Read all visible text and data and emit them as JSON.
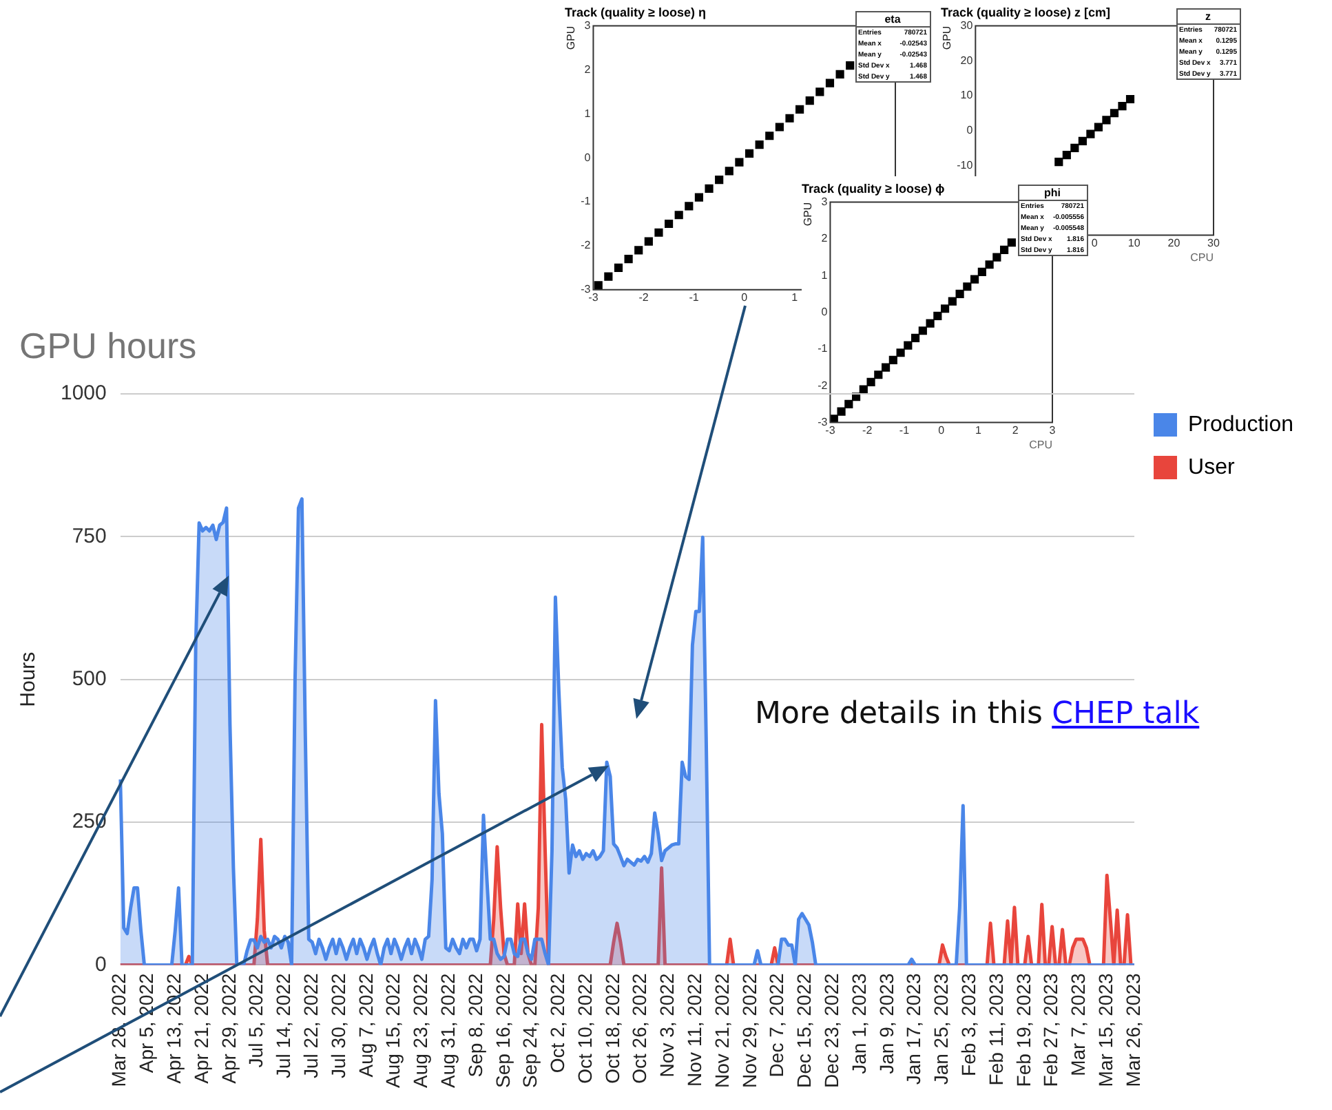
{
  "chart_data": [
    {
      "type": "scatter",
      "title": "Track (quality ≥ loose) η",
      "ylabel": "GPU",
      "marker": "square",
      "grid": false,
      "legend": false,
      "x": [
        -2.9,
        -2.7,
        -2.5,
        -2.3,
        -2.1,
        -1.9,
        -1.7,
        -1.5,
        -1.3,
        -1.1,
        -0.9,
        -0.7,
        -0.5,
        -0.3,
        -0.1,
        0.1,
        0.3,
        0.5,
        0.7,
        0.9,
        1.1,
        1.3,
        1.5,
        1.7,
        1.9,
        2.1
      ],
      "series": [
        {
          "color": "#000000",
          "values": [
            -2.9,
            -2.7,
            -2.5,
            -2.3,
            -2.1,
            -1.9,
            -1.7,
            -1.5,
            -1.3,
            -1.1,
            -0.9,
            -0.7,
            -0.5,
            -0.3,
            -0.1,
            0.1,
            0.3,
            0.5,
            0.7,
            0.9,
            1.1,
            1.3,
            1.5,
            1.7,
            1.9,
            2.1
          ]
        }
      ],
      "xlim": [
        -3,
        3
      ],
      "xticks": [
        -3,
        -2,
        -1,
        0,
        1
      ],
      "ylim": [
        -3,
        3
      ],
      "yticks": [
        -3,
        -2,
        -1,
        0,
        1,
        2,
        3
      ],
      "annotations": [
        "eta",
        "Entries 780721",
        "Mean x -0.02543",
        "Mean y -0.02543",
        "Std Dev x 1.468",
        "Std Dev y 1.468"
      ]
    },
    {
      "type": "scatter",
      "title": "Track (quality ≥ loose) z [cm]",
      "xlabel": "CPU",
      "ylabel": "GPU",
      "marker": "square",
      "grid": false,
      "legend": false,
      "x": [
        -9,
        -7,
        -5,
        -3,
        -1,
        1,
        3,
        5,
        7,
        9
      ],
      "series": [
        {
          "color": "#000000",
          "values": [
            -9,
            -7,
            -5,
            -3,
            -1,
            1,
            3,
            5,
            7,
            9
          ]
        }
      ],
      "xlim": [
        -30,
        30
      ],
      "xticks": [
        0,
        10,
        20,
        30
      ],
      "ylim": [
        -30,
        30
      ],
      "yticks": [
        -10,
        0,
        10,
        20,
        30
      ],
      "annotations": [
        "z",
        "Entries 780721",
        "Mean x 0.1295",
        "Mean y 0.1295",
        "Std Dev x 3.771",
        "Std Dev y 3.771"
      ]
    },
    {
      "type": "scatter",
      "title": "Track (quality ≥ loose) ϕ",
      "xlabel": "CPU",
      "ylabel": "GPU",
      "marker": "square",
      "grid": false,
      "legend": false,
      "x": [
        -2.9,
        -2.7,
        -2.5,
        -2.3,
        -2.1,
        -1.9,
        -1.7,
        -1.5,
        -1.3,
        -1.1,
        -0.9,
        -0.7,
        -0.5,
        -0.3,
        -0.1,
        0.1,
        0.3,
        0.5,
        0.7,
        0.9,
        1.1,
        1.3,
        1.5,
        1.7,
        1.9
      ],
      "series": [
        {
          "color": "#000000",
          "values": [
            -2.9,
            -2.7,
            -2.5,
            -2.3,
            -2.1,
            -1.9,
            -1.7,
            -1.5,
            -1.3,
            -1.1,
            -0.9,
            -0.7,
            -0.5,
            -0.3,
            -0.1,
            0.1,
            0.3,
            0.5,
            0.7,
            0.9,
            1.1,
            1.3,
            1.5,
            1.7,
            1.9
          ]
        }
      ],
      "xlim": [
        -3,
        3
      ],
      "xticks": [
        -3,
        -2,
        -1,
        0,
        1,
        2,
        3
      ],
      "ylim": [
        -3,
        3
      ],
      "yticks": [
        -3,
        -2,
        -1,
        0,
        1,
        2,
        3
      ],
      "annotations": [
        "phi",
        "Entries 780721",
        "Mean x -0.005556",
        "Mean y -0.005548",
        "Std Dev x 1.816",
        "Std Dev y 1.816"
      ]
    },
    {
      "type": "area",
      "title": "GPU hours",
      "ylabel": "Hours",
      "grid": "y",
      "legend": "right",
      "categories": [
        "Mar 28, 2022",
        null,
        null,
        null,
        null,
        null,
        null,
        null,
        "Apr 5, 2022",
        null,
        null,
        null,
        null,
        null,
        null,
        null,
        "Apr 13, 2022",
        null,
        null,
        null,
        null,
        null,
        null,
        null,
        "Apr 21, 2022",
        null,
        null,
        null,
        null,
        null,
        null,
        null,
        "Apr 29, 2022",
        null,
        null,
        null,
        null,
        null,
        null,
        null,
        "Jul 5, 2022",
        null,
        null,
        null,
        null,
        null,
        null,
        null,
        "Jul 14, 2022",
        null,
        null,
        null,
        null,
        null,
        null,
        null,
        "Jul 22, 2022",
        null,
        null,
        null,
        null,
        null,
        null,
        null,
        "Jul 30, 2022",
        null,
        null,
        null,
        null,
        null,
        null,
        null,
        "Aug 7, 2022",
        null,
        null,
        null,
        null,
        null,
        null,
        null,
        "Aug 15, 2022",
        null,
        null,
        null,
        null,
        null,
        null,
        null,
        "Aug 23, 2022",
        null,
        null,
        null,
        null,
        null,
        null,
        null,
        "Aug 31, 2022",
        null,
        null,
        null,
        null,
        null,
        null,
        null,
        "Sep 8, 2022",
        null,
        null,
        null,
        null,
        null,
        null,
        null,
        "Sep 16, 2022",
        null,
        null,
        null,
        null,
        null,
        null,
        null,
        "Sep 24, 2022",
        null,
        null,
        null,
        null,
        null,
        null,
        null,
        "Oct 2, 2022",
        null,
        null,
        null,
        null,
        null,
        null,
        null,
        "Oct 10, 2022",
        null,
        null,
        null,
        null,
        null,
        null,
        null,
        "Oct 18, 2022",
        null,
        null,
        null,
        null,
        null,
        null,
        null,
        "Oct 26, 2022",
        null,
        null,
        null,
        null,
        null,
        null,
        null,
        "Nov 3, 2022",
        null,
        null,
        null,
        null,
        null,
        null,
        null,
        "Nov 11, 2022",
        null,
        null,
        null,
        null,
        null,
        null,
        null,
        "Nov 21, 2022",
        null,
        null,
        null,
        null,
        null,
        null,
        null,
        "Nov 29, 2022",
        null,
        null,
        null,
        null,
        null,
        null,
        null,
        "Dec 7, 2022",
        null,
        null,
        null,
        null,
        null,
        null,
        null,
        "Dec 15, 2022",
        null,
        null,
        null,
        null,
        null,
        null,
        null,
        "Dec 23, 2022",
        null,
        null,
        null,
        null,
        null,
        null,
        null,
        "Jan 1, 2023",
        null,
        null,
        null,
        null,
        null,
        null,
        null,
        "Jan 9, 2023",
        null,
        null,
        null,
        null,
        null,
        null,
        null,
        "Jan 17, 2023",
        null,
        null,
        null,
        null,
        null,
        null,
        null,
        "Jan 25, 2023",
        null,
        null,
        null,
        null,
        null,
        null,
        null,
        "Feb 3, 2023",
        null,
        null,
        null,
        null,
        null,
        null,
        null,
        "Feb 11, 2023",
        null,
        null,
        null,
        null,
        null,
        null,
        null,
        "Feb 19, 2023",
        null,
        null,
        null,
        null,
        null,
        null,
        null,
        "Feb 27, 2023",
        null,
        null,
        null,
        null,
        null,
        null,
        null,
        "Mar 7, 2023",
        null,
        null,
        null,
        null,
        null,
        null,
        null,
        "Mar 15, 2023",
        null,
        null,
        null,
        null,
        null,
        null,
        null,
        "Mar 26, 2023"
      ],
      "series": [
        {
          "name": "Production",
          "color": "#4a86e8",
          "values": [
            325,
            65,
            55,
            100,
            135,
            135,
            60,
            0,
            0,
            0,
            0,
            0,
            0,
            0,
            0,
            0,
            60,
            135,
            0,
            0,
            0,
            0,
            560,
            774,
            760,
            766,
            760,
            770,
            745,
            770,
            775,
            800,
            420,
            170,
            0,
            0,
            0,
            25,
            44,
            44,
            30,
            50,
            40,
            45,
            30,
            50,
            45,
            30,
            50,
            40,
            0,
            500,
            800,
            816,
            400,
            45,
            40,
            20,
            45,
            30,
            10,
            30,
            45,
            20,
            45,
            30,
            10,
            30,
            45,
            20,
            45,
            30,
            10,
            30,
            45,
            20,
            0,
            30,
            45,
            20,
            45,
            30,
            10,
            30,
            45,
            20,
            45,
            30,
            10,
            45,
            50,
            150,
            463,
            300,
            230,
            30,
            25,
            45,
            30,
            20,
            45,
            30,
            45,
            45,
            25,
            45,
            262,
            150,
            45,
            45,
            20,
            10,
            15,
            45,
            45,
            20,
            15,
            45,
            45,
            20,
            10,
            45,
            45,
            45,
            20,
            0,
            200,
            644,
            480,
            346,
            290,
            161,
            210,
            190,
            200,
            185,
            195,
            190,
            200,
            185,
            190,
            200,
            355,
            330,
            212,
            205,
            190,
            174,
            185,
            180,
            175,
            185,
            182,
            190,
            180,
            195,
            266,
            230,
            183,
            200,
            205,
            210,
            212,
            212,
            355,
            330,
            325,
            560,
            619,
            619,
            749,
            400,
            0,
            0,
            0,
            0,
            0,
            0,
            0,
            0,
            0,
            0,
            0,
            0,
            0,
            0,
            25,
            0,
            0,
            0,
            0,
            0,
            0,
            45,
            45,
            35,
            35,
            0,
            80,
            90,
            80,
            70,
            40,
            0,
            0,
            0,
            0,
            0,
            0,
            0,
            0,
            0,
            0,
            0,
            0,
            0,
            0,
            0,
            0,
            0,
            0,
            0,
            0,
            0,
            0,
            0,
            0,
            0,
            0,
            0,
            0,
            10,
            0,
            0,
            0,
            0,
            0,
            0,
            0,
            0,
            0,
            0,
            0,
            0,
            0,
            100,
            279,
            0,
            0,
            0,
            0,
            0,
            0,
            0,
            0,
            0,
            0,
            0,
            0,
            0,
            0,
            0,
            0,
            0,
            0,
            0,
            0,
            0,
            0,
            0,
            0,
            0,
            0,
            0,
            0,
            0,
            0,
            0,
            0,
            0,
            0,
            0,
            0,
            0,
            0,
            0,
            0,
            0,
            0,
            0,
            0,
            0,
            0,
            0,
            0,
            0,
            0
          ]
        },
        {
          "name": "User",
          "color": "#e8453c",
          "values": [
            0,
            0,
            0,
            0,
            0,
            0,
            0,
            0,
            0,
            0,
            0,
            0,
            0,
            0,
            0,
            0,
            0,
            0,
            0,
            0,
            15,
            0,
            0,
            0,
            0,
            0,
            0,
            0,
            0,
            0,
            0,
            0,
            0,
            0,
            0,
            0,
            0,
            0,
            0,
            0,
            80,
            220,
            60,
            0,
            0,
            0,
            0,
            0,
            0,
            0,
            0,
            0,
            0,
            0,
            0,
            0,
            0,
            0,
            0,
            0,
            0,
            0,
            0,
            0,
            0,
            0,
            0,
            0,
            0,
            0,
            0,
            0,
            0,
            0,
            0,
            0,
            0,
            0,
            0,
            0,
            0,
            0,
            0,
            0,
            0,
            0,
            0,
            0,
            0,
            0,
            0,
            0,
            0,
            0,
            0,
            0,
            0,
            0,
            0,
            0,
            0,
            0,
            0,
            0,
            0,
            0,
            0,
            0,
            0,
            80,
            207,
            100,
            20,
            0,
            0,
            0,
            107,
            20,
            107,
            20,
            0,
            0,
            100,
            421,
            200,
            0,
            0,
            0,
            0,
            0,
            0,
            0,
            0,
            0,
            0,
            0,
            0,
            0,
            0,
            0,
            0,
            0,
            0,
            0,
            40,
            73,
            40,
            0,
            0,
            0,
            0,
            0,
            0,
            0,
            0,
            0,
            0,
            0,
            170,
            0,
            0,
            0,
            0,
            0,
            0,
            0,
            0,
            0,
            0,
            0,
            0,
            0,
            0,
            0,
            0,
            0,
            0,
            0,
            45,
            0,
            0,
            0,
            0,
            0,
            0,
            0,
            0,
            0,
            0,
            0,
            0,
            30,
            0,
            0,
            0,
            0,
            0,
            0,
            0,
            0,
            0,
            0,
            0,
            0,
            0,
            0,
            0,
            0,
            0,
            0,
            0,
            0,
            0,
            0,
            0,
            0,
            0,
            0,
            0,
            0,
            0,
            0,
            0,
            0,
            0,
            0,
            0,
            0,
            0,
            0,
            0,
            0,
            0,
            0,
            0,
            0,
            0,
            0,
            0,
            0,
            35,
            15,
            0,
            0,
            0,
            0,
            0,
            0,
            0,
            0,
            0,
            0,
            0,
            0,
            73,
            0,
            0,
            0,
            0,
            77,
            0,
            101,
            0,
            0,
            0,
            50,
            0,
            0,
            0,
            106,
            0,
            0,
            67,
            0,
            0,
            62,
            0,
            0,
            30,
            45,
            45,
            45,
            30,
            0,
            0,
            0,
            0,
            0,
            157,
            80,
            0,
            96,
            0,
            0,
            88,
            0,
            0
          ]
        }
      ],
      "ylim": [
        0,
        1000
      ],
      "yticks": [
        0,
        250,
        500,
        750,
        1000
      ],
      "annotations": [
        "More details in this",
        "CHEP talk"
      ]
    }
  ]
}
